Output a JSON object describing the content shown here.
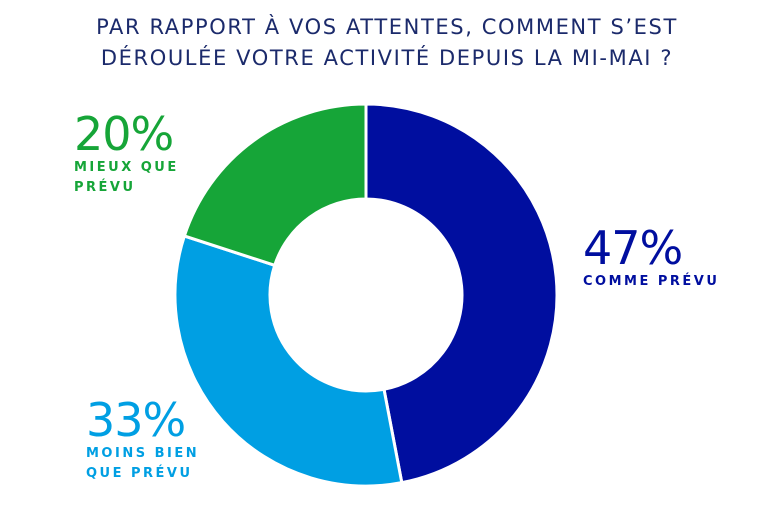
{
  "chart_data": {
    "type": "pie",
    "variant": "donut",
    "title_lines": [
      "PAR RAPPORT À VOS ATTENTES, COMMENT S’EST",
      "DÉROULÉE VOTRE ACTIVITÉ DEPUIS LA MI-MAI ?"
    ],
    "slices": [
      {
        "label_lines": [
          "COMME PRÉVU"
        ],
        "value": 47,
        "value_label": "47%",
        "color": "#000e9f"
      },
      {
        "label_lines": [
          "MOINS BIEN",
          "QUE PRÉVU"
        ],
        "value": 33,
        "value_label": "33%",
        "color": "#009fe3"
      },
      {
        "label_lines": [
          "MIEUX QUE",
          "PRÉVU"
        ],
        "value": 20,
        "value_label": "20%",
        "color": "#16a538"
      }
    ]
  }
}
